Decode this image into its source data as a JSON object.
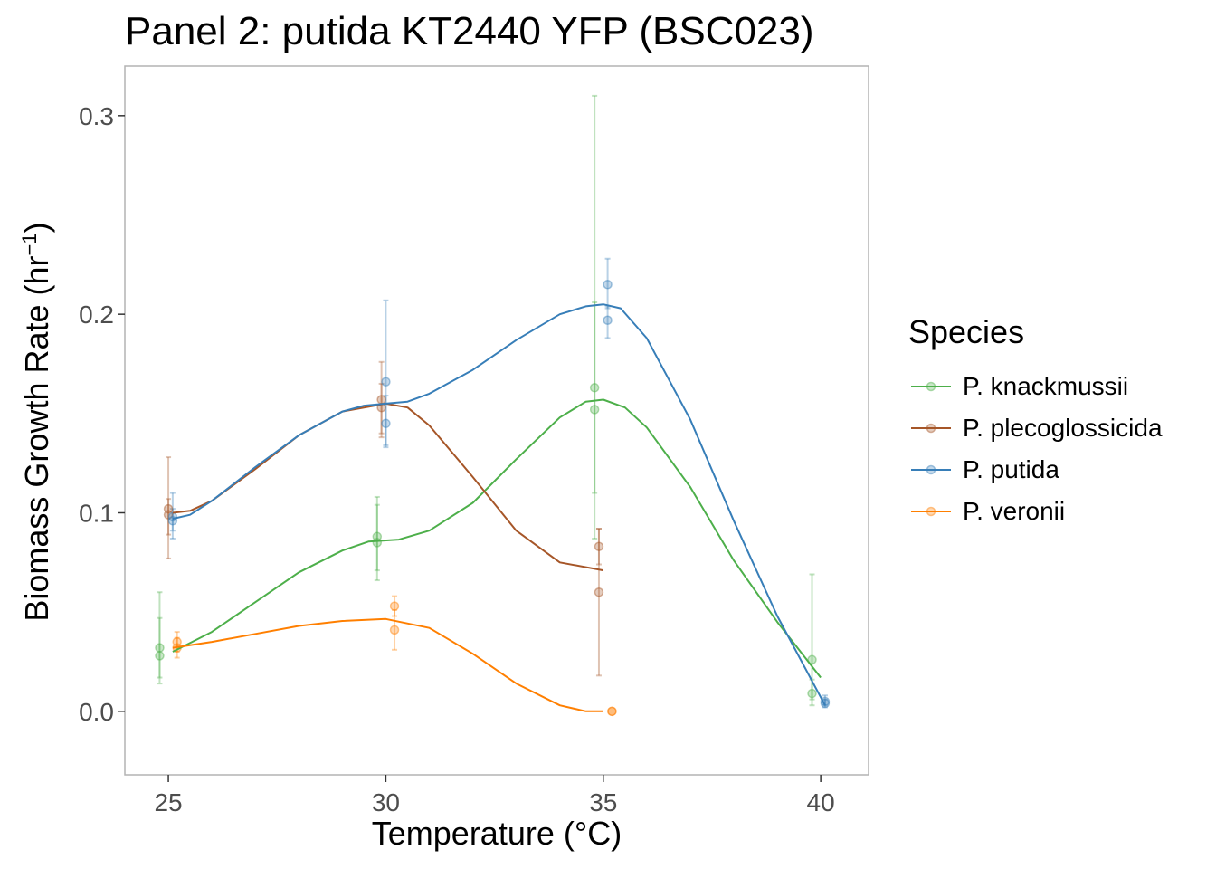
{
  "chart_data": {
    "type": "line",
    "title": "Panel 2: putida KT2440 YFP (BSC023)",
    "xlabel": "Temperature (°C)",
    "ylabel": "Biomass Growth Rate (hr",
    "ylabel_sup": "−1",
    "ylabel_close": ")",
    "xlim": [
      24,
      41.1
    ],
    "ylim": [
      -0.032,
      0.325
    ],
    "xticks": [
      25,
      30,
      35,
      40
    ],
    "yticks": [
      0.0,
      0.1,
      0.2,
      0.3
    ],
    "ytick_labels": [
      "0.0",
      "0.1",
      "0.2",
      "0.3"
    ],
    "grid": false,
    "legend_title": "Species",
    "legend_position": "right",
    "series": [
      {
        "name": "P. knackmussii",
        "color": "#4daf4a",
        "points": [
          {
            "x": 24.8,
            "y": 0.032,
            "lo": 0.017,
            "hi": 0.06
          },
          {
            "x": 24.8,
            "y": 0.028,
            "lo": 0.014,
            "hi": 0.047
          },
          {
            "x": 29.8,
            "y": 0.088,
            "lo": 0.071,
            "hi": 0.108
          },
          {
            "x": 29.8,
            "y": 0.085,
            "lo": 0.066,
            "hi": 0.104
          },
          {
            "x": 34.8,
            "y": 0.163,
            "lo": 0.11,
            "hi": 0.31
          },
          {
            "x": 34.8,
            "y": 0.152,
            "lo": 0.087,
            "hi": 0.206
          },
          {
            "x": 39.8,
            "y": 0.026,
            "lo": 0.006,
            "hi": 0.069
          },
          {
            "x": 39.8,
            "y": 0.009,
            "lo": 0.003,
            "hi": 0.016
          }
        ],
        "fit": [
          [
            25.1,
            0.03
          ],
          [
            26,
            0.04
          ],
          [
            27,
            0.055
          ],
          [
            28,
            0.07
          ],
          [
            29,
            0.081
          ],
          [
            29.6,
            0.0855
          ],
          [
            30.3,
            0.0865
          ],
          [
            31,
            0.091
          ],
          [
            32,
            0.105
          ],
          [
            33,
            0.127
          ],
          [
            34,
            0.148
          ],
          [
            34.6,
            0.156
          ],
          [
            35,
            0.157
          ],
          [
            35.5,
            0.153
          ],
          [
            36,
            0.143
          ],
          [
            37,
            0.113
          ],
          [
            38,
            0.076
          ],
          [
            39,
            0.045
          ],
          [
            40,
            0.017
          ]
        ]
      },
      {
        "name": "P. plecoglossicida",
        "color": "#a65628",
        "points": [
          {
            "x": 25.0,
            "y": 0.102,
            "lo": 0.077,
            "hi": 0.128
          },
          {
            "x": 25.0,
            "y": 0.099,
            "lo": 0.089,
            "hi": 0.107
          },
          {
            "x": 29.9,
            "y": 0.157,
            "lo": 0.14,
            "hi": 0.176
          },
          {
            "x": 29.9,
            "y": 0.153,
            "lo": 0.138,
            "hi": 0.165
          },
          {
            "x": 34.9,
            "y": 0.083,
            "lo": 0.074,
            "hi": 0.092
          },
          {
            "x": 34.9,
            "y": 0.06,
            "lo": 0.018,
            "hi": 0.092
          }
        ],
        "fit": [
          [
            25.1,
            0.1
          ],
          [
            25.5,
            0.101
          ],
          [
            26,
            0.106
          ],
          [
            27,
            0.122
          ],
          [
            28,
            0.139
          ],
          [
            29,
            0.151
          ],
          [
            30,
            0.155
          ],
          [
            30.5,
            0.153
          ],
          [
            31,
            0.144
          ],
          [
            32,
            0.118
          ],
          [
            33,
            0.091
          ],
          [
            34,
            0.075
          ],
          [
            35,
            0.071
          ]
        ]
      },
      {
        "name": "P. putida",
        "color": "#377eb8",
        "points": [
          {
            "x": 25.1,
            "y": 0.096,
            "lo": 0.091,
            "hi": 0.102
          },
          {
            "x": 25.1,
            "y": 0.098,
            "lo": 0.087,
            "hi": 0.11
          },
          {
            "x": 30.0,
            "y": 0.166,
            "lo": 0.134,
            "hi": 0.207
          },
          {
            "x": 30.0,
            "y": 0.145,
            "lo": 0.133,
            "hi": 0.159
          },
          {
            "x": 35.1,
            "y": 0.215,
            "lo": 0.203,
            "hi": 0.228
          },
          {
            "x": 35.1,
            "y": 0.197,
            "lo": 0.188,
            "hi": 0.204
          },
          {
            "x": 40.1,
            "y": 0.005,
            "lo": 0.003,
            "hi": 0.008
          },
          {
            "x": 40.1,
            "y": 0.004,
            "lo": 0.002,
            "hi": 0.006
          }
        ],
        "fit": [
          [
            25.1,
            0.097
          ],
          [
            25.5,
            0.099
          ],
          [
            26,
            0.106
          ],
          [
            27,
            0.123
          ],
          [
            28,
            0.139
          ],
          [
            29,
            0.151
          ],
          [
            29.5,
            0.154
          ],
          [
            30,
            0.155
          ],
          [
            30.5,
            0.156
          ],
          [
            31,
            0.16
          ],
          [
            32,
            0.172
          ],
          [
            33,
            0.187
          ],
          [
            34,
            0.2
          ],
          [
            34.6,
            0.204
          ],
          [
            35,
            0.205
          ],
          [
            35.4,
            0.203
          ],
          [
            36,
            0.188
          ],
          [
            37,
            0.147
          ],
          [
            38,
            0.096
          ],
          [
            39,
            0.048
          ],
          [
            40.1,
            0.003
          ]
        ]
      },
      {
        "name": "P. veronii",
        "color": "#ff7f00",
        "points": [
          {
            "x": 25.2,
            "y": 0.035,
            "lo": 0.03,
            "hi": 0.04
          },
          {
            "x": 25.2,
            "y": 0.032,
            "lo": 0.027,
            "hi": 0.037
          },
          {
            "x": 30.2,
            "y": 0.053,
            "lo": 0.048,
            "hi": 0.058
          },
          {
            "x": 30.2,
            "y": 0.041,
            "lo": 0.031,
            "hi": 0.051
          },
          {
            "x": 35.2,
            "y": 0.0,
            "lo": 0.0,
            "hi": 0.0
          },
          {
            "x": 35.2,
            "y": 0.0,
            "lo": 0.0,
            "hi": 0.0
          }
        ],
        "fit": [
          [
            25.1,
            0.032
          ],
          [
            26,
            0.035
          ],
          [
            27,
            0.039
          ],
          [
            28,
            0.043
          ],
          [
            29,
            0.0455
          ],
          [
            30,
            0.0465
          ],
          [
            31,
            0.042
          ],
          [
            32,
            0.029
          ],
          [
            33,
            0.014
          ],
          [
            34,
            0.003
          ],
          [
            34.6,
            0.0
          ],
          [
            35,
            0.0
          ]
        ]
      }
    ]
  }
}
